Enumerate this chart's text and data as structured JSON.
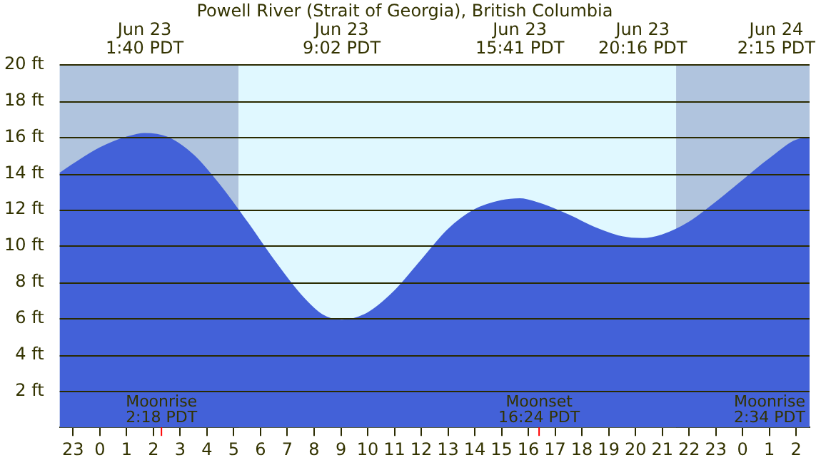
{
  "chart_data": {
    "type": "area",
    "title": "Powell River (Strait of Georgia), British Columbia",
    "x": [
      "--06-22T22:30",
      "--06-22T23:00",
      "--06-23T00:00",
      "--06-23T01:00",
      "--06-23T01:40",
      "--06-23T02:30",
      "--06-23T03:30",
      "--06-23T04:30",
      "--06-23T05:30",
      "--06-23T06:30",
      "--06-23T07:30",
      "--06-23T08:18",
      "--06-23T09:02",
      "--06-23T10:00",
      "--06-23T11:00",
      "--06-23T12:00",
      "--06-23T13:00",
      "--06-23T14:00",
      "--06-23T15:00",
      "--06-23T15:41",
      "--06-23T16:30",
      "--06-23T17:30",
      "--06-23T18:30",
      "--06-23T19:30",
      "--06-23T20:16",
      "--06-23T21:00",
      "--06-23T22:00",
      "--06-23T23:00",
      "--06-24T00:00",
      "--06-24T01:00",
      "--06-24T02:15",
      "--06-24T02:30"
    ],
    "series": [
      {
        "color": "#4361d8",
        "values": [
          14.0,
          14.5,
          15.4,
          16.0,
          16.2,
          16.0,
          15.0,
          13.3,
          11.3,
          9.2,
          7.3,
          6.2,
          5.9,
          6.3,
          7.5,
          9.2,
          10.9,
          12.0,
          12.5,
          12.6,
          12.3,
          11.7,
          11.0,
          10.5,
          10.4,
          10.6,
          11.3,
          12.4,
          13.6,
          14.8,
          15.9,
          15.9
        ]
      }
    ],
    "xlim": [
      "--06-22T22:30",
      "--06-24T02:30"
    ],
    "xticks": [
      {
        "value": "--06-22T23:00",
        "label": "23"
      },
      {
        "value": "--06-23T00:00",
        "label": "0"
      },
      {
        "value": "--06-23T01:00",
        "label": "1"
      },
      {
        "value": "--06-23T02:00",
        "label": "2"
      },
      {
        "value": "--06-23T03:00",
        "label": "3"
      },
      {
        "value": "--06-23T04:00",
        "label": "4"
      },
      {
        "value": "--06-23T05:00",
        "label": "5"
      },
      {
        "value": "--06-23T06:00",
        "label": "6"
      },
      {
        "value": "--06-23T07:00",
        "label": "7"
      },
      {
        "value": "--06-23T08:00",
        "label": "8"
      },
      {
        "value": "--06-23T09:00",
        "label": "9"
      },
      {
        "value": "--06-23T10:00",
        "label": "10"
      },
      {
        "value": "--06-23T11:00",
        "label": "11"
      },
      {
        "value": "--06-23T12:00",
        "label": "12"
      },
      {
        "value": "--06-23T13:00",
        "label": "13"
      },
      {
        "value": "--06-23T14:00",
        "label": "14"
      },
      {
        "value": "--06-23T15:00",
        "label": "15"
      },
      {
        "value": "--06-23T16:00",
        "label": "16"
      },
      {
        "value": "--06-23T17:00",
        "label": "17"
      },
      {
        "value": "--06-23T18:00",
        "label": "18"
      },
      {
        "value": "--06-23T19:00",
        "label": "19"
      },
      {
        "value": "--06-23T20:00",
        "label": "20"
      },
      {
        "value": "--06-23T21:00",
        "label": "21"
      },
      {
        "value": "--06-23T22:00",
        "label": "22"
      },
      {
        "value": "--06-23T23:00",
        "label": "23"
      },
      {
        "value": "--06-24T00:00",
        "label": "0"
      },
      {
        "value": "--06-24T01:00",
        "label": "1"
      },
      {
        "value": "--06-24T02:00",
        "label": "2"
      }
    ],
    "ylim": [
      0,
      20
    ],
    "yticks": [
      {
        "value": 2,
        "label": "2 ft"
      },
      {
        "value": 4,
        "label": "4 ft"
      },
      {
        "value": 6,
        "label": "6 ft"
      },
      {
        "value": 8,
        "label": "8 ft"
      },
      {
        "value": 10,
        "label": "10 ft"
      },
      {
        "value": 12,
        "label": "12 ft"
      },
      {
        "value": 14,
        "label": "14 ft"
      },
      {
        "value": 16,
        "label": "16 ft"
      },
      {
        "value": 18,
        "label": "18 ft"
      },
      {
        "value": 20,
        "label": "20 ft"
      }
    ],
    "grid": "y",
    "legend": false,
    "marker": "none",
    "bands": [
      {
        "axis": "x",
        "from": "--06-22T22:30",
        "to": "--06-23T05:11",
        "color": "#b0c4de"
      },
      {
        "axis": "x",
        "from": "--06-23T05:11",
        "to": "--06-23T21:31",
        "color": "#e0f8ff"
      },
      {
        "axis": "x",
        "from": "--06-23T21:31",
        "to": "--06-24T02:30",
        "color": "#b0c4de"
      }
    ],
    "annotations": [
      "Jun 23\n1:40 PDT",
      "Jun 23\n9:02 PDT",
      "Jun 23\n15:41 PDT",
      "Jun 23\n20:16 PDT",
      "Jun 24\n2:15 PDT",
      "Moonrise\n2:18 PDT",
      "Moonset\n16:24 PDT",
      "Moonrise\n2:34 PDT"
    ]
  }
}
